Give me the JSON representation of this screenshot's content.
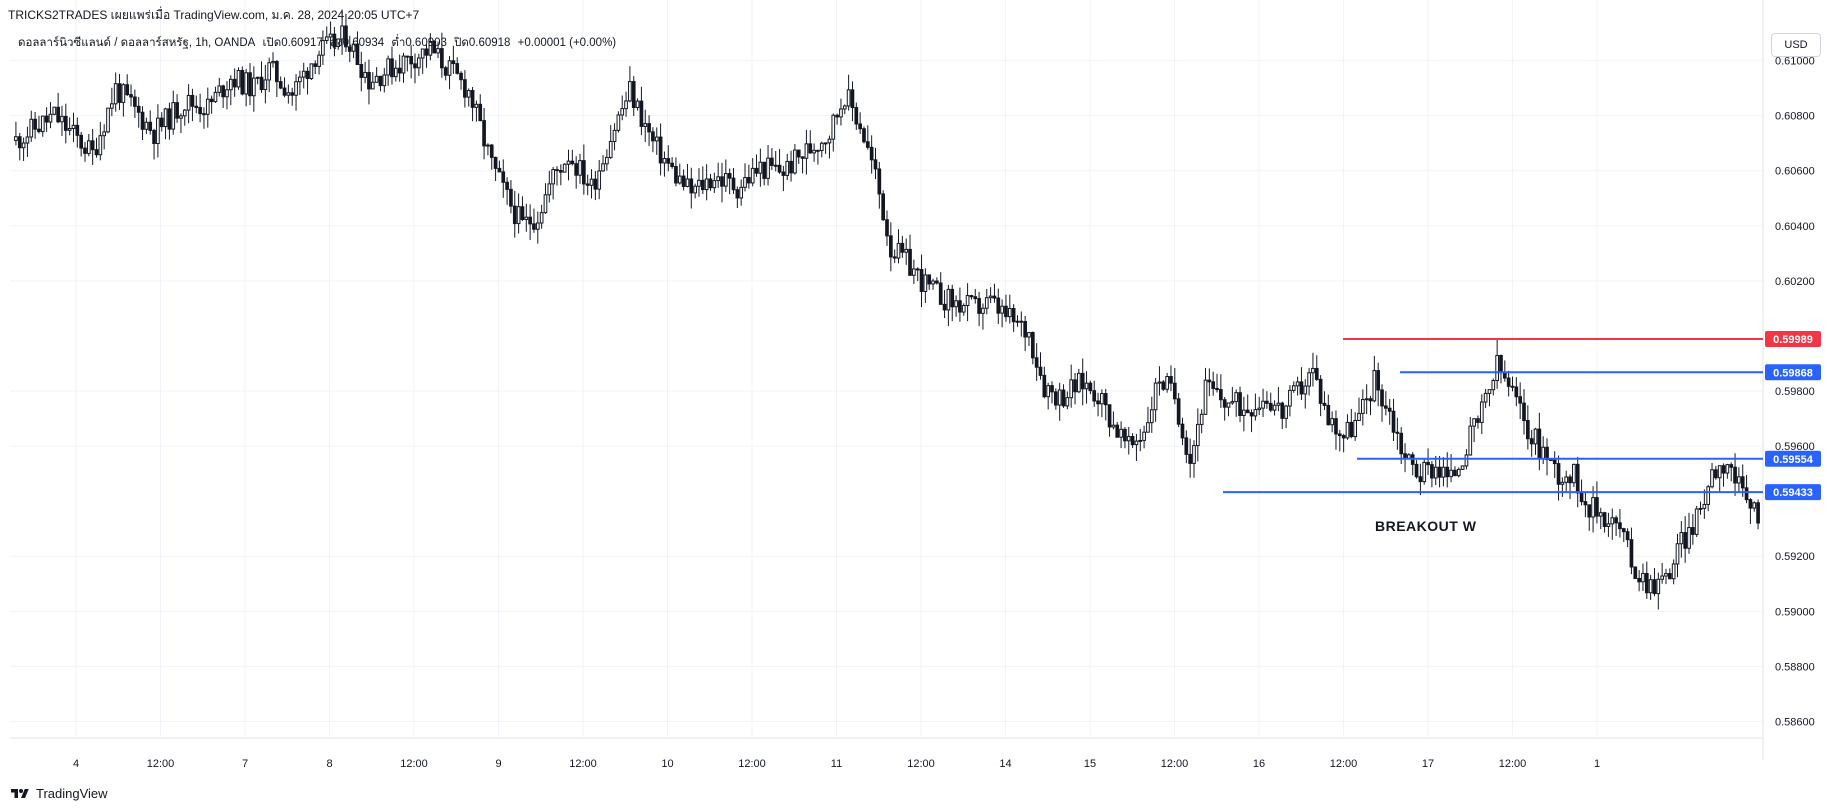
{
  "header": {
    "publish_line": "TRICKS2TRADES เผยแพร่เมื่อ TradingView.com, ม.ค. 28, 2024 20:05 UTC+7",
    "symbol": "ดอลลาร์นิวซีแลนด์ / ดอลลาร์สหรัฐ, 1h, OANDA",
    "open": "เปิด0.60917",
    "high": "สูง0.60934",
    "low": "ต่ำ0.60903",
    "close": "ปิด0.60918",
    "change": "+0.00001 (+0.00%)"
  },
  "currency_button": "USD",
  "footer": {
    "brand": "TradingView",
    "logo_icon": "tradingview-logo-icon"
  },
  "colors": {
    "up": "#ffffff",
    "down": "#131722",
    "level_blue": "#2962ff",
    "level_red": "#f23645"
  },
  "chart_data": {
    "type": "candlestick",
    "title": "",
    "xlabel": "",
    "ylabel": "",
    "ylim": [
      0.5854,
      0.6114
    ],
    "grid": true,
    "y_ticks": [
      "0.61000",
      "0.60800",
      "0.60600",
      "0.60400",
      "0.60200",
      "0.59800",
      "0.59600",
      "0.59200",
      "0.59000",
      "0.58800",
      "0.58600"
    ],
    "x_ticks": [
      "4",
      "12:00",
      "7",
      "8",
      "12:00",
      "9",
      "12:00",
      "10",
      "12:00",
      "11",
      "12:00",
      "14",
      "15",
      "12:00",
      "16",
      "12:00",
      "17",
      "12:00",
      "1"
    ],
    "price_path": [
      [
        0,
        0.6071
      ],
      [
        10,
        0.608
      ],
      [
        20,
        0.6066
      ],
      [
        26,
        0.609
      ],
      [
        36,
        0.6074
      ],
      [
        44,
        0.6085
      ],
      [
        50,
        0.6083
      ],
      [
        56,
        0.6094
      ],
      [
        62,
        0.609
      ],
      [
        66,
        0.6097
      ],
      [
        72,
        0.6088
      ],
      [
        78,
        0.6102
      ],
      [
        86,
        0.6109
      ],
      [
        92,
        0.6093
      ],
      [
        100,
        0.6099
      ],
      [
        108,
        0.6104
      ],
      [
        114,
        0.6095
      ],
      [
        118,
        0.6089
      ],
      [
        124,
        0.6062
      ],
      [
        128,
        0.605
      ],
      [
        132,
        0.604
      ],
      [
        136,
        0.6044
      ],
      [
        140,
        0.6058
      ],
      [
        144,
        0.6066
      ],
      [
        150,
        0.6054
      ],
      [
        156,
        0.6076
      ],
      [
        160,
        0.6089
      ],
      [
        166,
        0.607
      ],
      [
        172,
        0.6058
      ],
      [
        176,
        0.6052
      ],
      [
        182,
        0.6058
      ],
      [
        188,
        0.6054
      ],
      [
        194,
        0.6061
      ],
      [
        200,
        0.606
      ],
      [
        206,
        0.6067
      ],
      [
        212,
        0.6074
      ],
      [
        216,
        0.6088
      ],
      [
        220,
        0.6077
      ],
      [
        224,
        0.6058
      ],
      [
        228,
        0.6032
      ],
      [
        232,
        0.6027
      ],
      [
        238,
        0.6017
      ],
      [
        244,
        0.6012
      ],
      [
        250,
        0.601
      ],
      [
        254,
        0.6012
      ],
      [
        258,
        0.6007
      ],
      [
        264,
        0.6001
      ],
      [
        268,
        0.5982
      ],
      [
        272,
        0.5978
      ],
      [
        278,
        0.5983
      ],
      [
        282,
        0.5979
      ],
      [
        286,
        0.5968
      ],
      [
        290,
        0.5959
      ],
      [
        294,
        0.5966
      ],
      [
        298,
        0.5985
      ],
      [
        302,
        0.5978
      ],
      [
        306,
        0.5955
      ],
      [
        310,
        0.5981
      ],
      [
        314,
        0.5977
      ],
      [
        320,
        0.5974
      ],
      [
        326,
        0.5978
      ],
      [
        330,
        0.5972
      ],
      [
        334,
        0.598
      ],
      [
        338,
        0.5987
      ],
      [
        342,
        0.597
      ],
      [
        346,
        0.5964
      ],
      [
        350,
        0.597
      ],
      [
        354,
        0.5984
      ],
      [
        358,
        0.5972
      ],
      [
        362,
        0.5956
      ],
      [
        366,
        0.595
      ],
      [
        370,
        0.5953
      ],
      [
        374,
        0.5948
      ],
      [
        378,
        0.596
      ],
      [
        382,
        0.5972
      ],
      [
        386,
        0.5989
      ],
      [
        390,
        0.5979
      ],
      [
        394,
        0.5966
      ],
      [
        398,
        0.5958
      ],
      [
        402,
        0.595
      ],
      [
        406,
        0.5949
      ],
      [
        410,
        0.5938
      ],
      [
        414,
        0.5935
      ],
      [
        418,
        0.593
      ],
      [
        422,
        0.5915
      ],
      [
        426,
        0.591
      ],
      [
        430,
        0.5912
      ],
      [
        434,
        0.5925
      ],
      [
        438,
        0.5933
      ],
      [
        442,
        0.5951
      ],
      [
        446,
        0.5955
      ],
      [
        450,
        0.5941
      ],
      [
        454,
        0.5936
      ]
    ],
    "levels": [
      {
        "value": 0.59989,
        "label": "0.59989",
        "color": "#f23645"
      },
      {
        "value": 0.59868,
        "label": "0.59868",
        "color": "#2962ff"
      },
      {
        "value": 0.59554,
        "label": "0.59554",
        "color": "#2962ff"
      },
      {
        "value": 0.59433,
        "label": "0.59433",
        "color": "#2962ff"
      }
    ],
    "annotation": "BREAKOUT W"
  }
}
